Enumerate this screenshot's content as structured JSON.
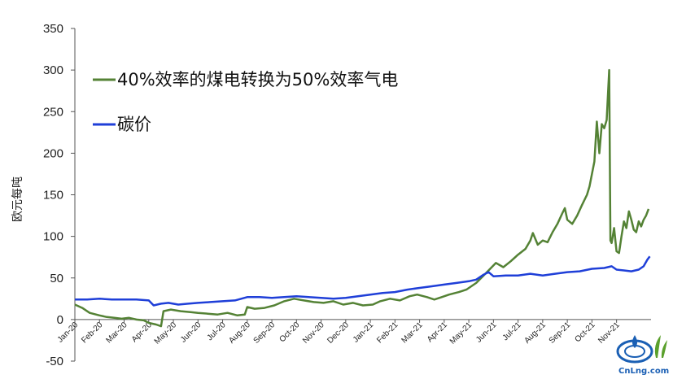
{
  "chart_data": {
    "type": "line",
    "xlabel": "",
    "ylabel": "欧元每吨",
    "ylim": [
      -50,
      350
    ],
    "yticks": [
      -50,
      0,
      50,
      100,
      150,
      200,
      250,
      300,
      350
    ],
    "categories": [
      "Jan-20",
      "Feb-20",
      "Mar-20",
      "Apr-20",
      "May-20",
      "Jun-20",
      "Jul-20",
      "Aug-20",
      "Sep-20",
      "Oct-20",
      "Nov-20",
      "Dec-20",
      "Jan-21",
      "Feb-21",
      "Mar-21",
      "Apr-21",
      "May-21",
      "Jun-21",
      "Jul-21",
      "Aug-21",
      "Sep-21",
      "Oct-21",
      "Nov-21"
    ],
    "x_domain": [
      0,
      23.4
    ],
    "grid": false,
    "legend_placement": "top-left",
    "series": [
      {
        "name": "40%效率的煤电转换为50%效率气电",
        "color": "#548235",
        "points": [
          [
            0,
            18
          ],
          [
            0.3,
            14
          ],
          [
            0.6,
            8
          ],
          [
            1.0,
            5
          ],
          [
            1.3,
            3
          ],
          [
            1.6,
            2
          ],
          [
            1.9,
            1
          ],
          [
            2.2,
            2
          ],
          [
            2.5,
            0
          ],
          [
            2.8,
            -1
          ],
          [
            3.0,
            -4
          ],
          [
            3.3,
            -6
          ],
          [
            3.5,
            -8
          ],
          [
            3.6,
            10
          ],
          [
            3.9,
            12
          ],
          [
            4.3,
            10
          ],
          [
            4.7,
            9
          ],
          [
            5.0,
            8
          ],
          [
            5.4,
            7
          ],
          [
            5.8,
            6
          ],
          [
            6.2,
            8
          ],
          [
            6.6,
            5
          ],
          [
            6.9,
            6
          ],
          [
            7.0,
            15
          ],
          [
            7.3,
            13
          ],
          [
            7.7,
            14
          ],
          [
            8.1,
            17
          ],
          [
            8.5,
            22
          ],
          [
            8.9,
            25
          ],
          [
            9.3,
            23
          ],
          [
            9.7,
            21
          ],
          [
            10.1,
            20
          ],
          [
            10.5,
            22
          ],
          [
            10.9,
            18
          ],
          [
            11.3,
            20
          ],
          [
            11.7,
            17
          ],
          [
            12.1,
            18
          ],
          [
            12.4,
            22
          ],
          [
            12.8,
            25
          ],
          [
            13.2,
            23
          ],
          [
            13.6,
            28
          ],
          [
            13.9,
            30
          ],
          [
            14.3,
            27
          ],
          [
            14.6,
            24
          ],
          [
            14.9,
            27
          ],
          [
            15.2,
            30
          ],
          [
            15.6,
            33
          ],
          [
            15.9,
            36
          ],
          [
            16.3,
            44
          ],
          [
            16.6,
            53
          ],
          [
            16.9,
            62
          ],
          [
            17.1,
            68
          ],
          [
            17.4,
            63
          ],
          [
            17.7,
            70
          ],
          [
            18.0,
            78
          ],
          [
            18.3,
            85
          ],
          [
            18.5,
            95
          ],
          [
            18.6,
            104
          ],
          [
            18.8,
            90
          ],
          [
            19.0,
            95
          ],
          [
            19.2,
            93
          ],
          [
            19.4,
            105
          ],
          [
            19.6,
            115
          ],
          [
            19.8,
            128
          ],
          [
            19.9,
            134
          ],
          [
            20.0,
            120
          ],
          [
            20.2,
            115
          ],
          [
            20.4,
            125
          ],
          [
            20.6,
            138
          ],
          [
            20.8,
            150
          ],
          [
            20.9,
            160
          ],
          [
            21.0,
            175
          ],
          [
            21.1,
            190
          ],
          [
            21.2,
            238
          ],
          [
            21.3,
            200
          ],
          [
            21.4,
            235
          ],
          [
            21.5,
            230
          ],
          [
            21.6,
            240
          ],
          [
            21.7,
            300
          ],
          [
            21.75,
            95
          ],
          [
            21.8,
            92
          ],
          [
            21.9,
            110
          ],
          [
            22.0,
            82
          ],
          [
            22.1,
            80
          ],
          [
            22.2,
            100
          ],
          [
            22.3,
            118
          ],
          [
            22.4,
            110
          ],
          [
            22.5,
            130
          ],
          [
            22.6,
            120
          ],
          [
            22.7,
            108
          ],
          [
            22.8,
            105
          ],
          [
            22.9,
            118
          ],
          [
            23.0,
            112
          ],
          [
            23.1,
            120
          ],
          [
            23.2,
            125
          ],
          [
            23.3,
            133
          ]
        ]
      },
      {
        "name": "碳价",
        "color": "#1f3fd8",
        "points": [
          [
            0,
            24
          ],
          [
            0.5,
            24
          ],
          [
            1.0,
            25
          ],
          [
            1.5,
            24
          ],
          [
            2.0,
            24
          ],
          [
            2.5,
            24
          ],
          [
            3.0,
            23
          ],
          [
            3.2,
            17
          ],
          [
            3.5,
            19
          ],
          [
            3.8,
            20
          ],
          [
            4.2,
            18
          ],
          [
            4.6,
            19
          ],
          [
            5.0,
            20
          ],
          [
            5.5,
            21
          ],
          [
            6.0,
            22
          ],
          [
            6.5,
            23
          ],
          [
            7.0,
            27
          ],
          [
            7.5,
            27
          ],
          [
            8.0,
            26
          ],
          [
            8.5,
            27
          ],
          [
            9.0,
            28
          ],
          [
            9.5,
            27
          ],
          [
            10.0,
            26
          ],
          [
            10.5,
            25
          ],
          [
            11.0,
            26
          ],
          [
            11.5,
            28
          ],
          [
            12.0,
            30
          ],
          [
            12.5,
            32
          ],
          [
            13.0,
            33
          ],
          [
            13.5,
            36
          ],
          [
            14.0,
            38
          ],
          [
            14.5,
            40
          ],
          [
            15.0,
            42
          ],
          [
            15.5,
            44
          ],
          [
            16.0,
            46
          ],
          [
            16.3,
            48
          ],
          [
            16.6,
            54
          ],
          [
            16.8,
            57
          ],
          [
            17.0,
            52
          ],
          [
            17.5,
            53
          ],
          [
            18.0,
            53
          ],
          [
            18.5,
            55
          ],
          [
            19.0,
            53
          ],
          [
            19.5,
            55
          ],
          [
            20.0,
            57
          ],
          [
            20.5,
            58
          ],
          [
            21.0,
            61
          ],
          [
            21.5,
            62
          ],
          [
            21.8,
            64
          ],
          [
            22.0,
            60
          ],
          [
            22.3,
            59
          ],
          [
            22.6,
            58
          ],
          [
            22.9,
            60
          ],
          [
            23.1,
            64
          ],
          [
            23.25,
            72
          ],
          [
            23.35,
            76
          ]
        ]
      }
    ]
  },
  "watermark": {
    "text": "CnLng.com",
    "colors": [
      "#1a5fb4",
      "#5aa02c"
    ]
  }
}
